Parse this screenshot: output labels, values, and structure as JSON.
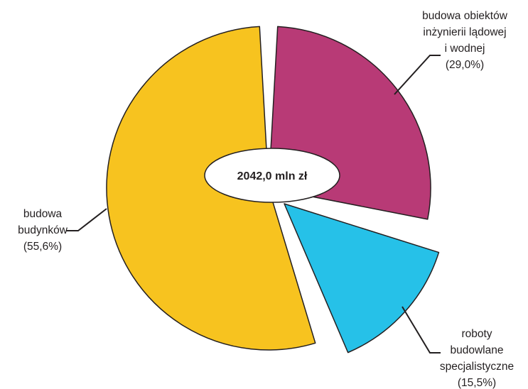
{
  "chart_data": {
    "type": "pie",
    "center_label": "2042,0 mln zł",
    "slices": [
      {
        "lines": [
          "budowa obiektów",
          "inżynierii lądowej",
          "i wodnej",
          "(29,0%)"
        ],
        "value": 29.0,
        "color": "#b83a76"
      },
      {
        "lines": [
          "roboty",
          "budowlane",
          "specjalistyczne",
          "(15,5%)"
        ],
        "value": 15.5,
        "color": "#26c1e8"
      },
      {
        "lines": [
          "budowa",
          "budynków",
          "(55,6%)"
        ],
        "value": 55.6,
        "color": "#f7c31f"
      }
    ],
    "exploded": true,
    "start_angle_deg": 0,
    "direction": "clockwise"
  }
}
